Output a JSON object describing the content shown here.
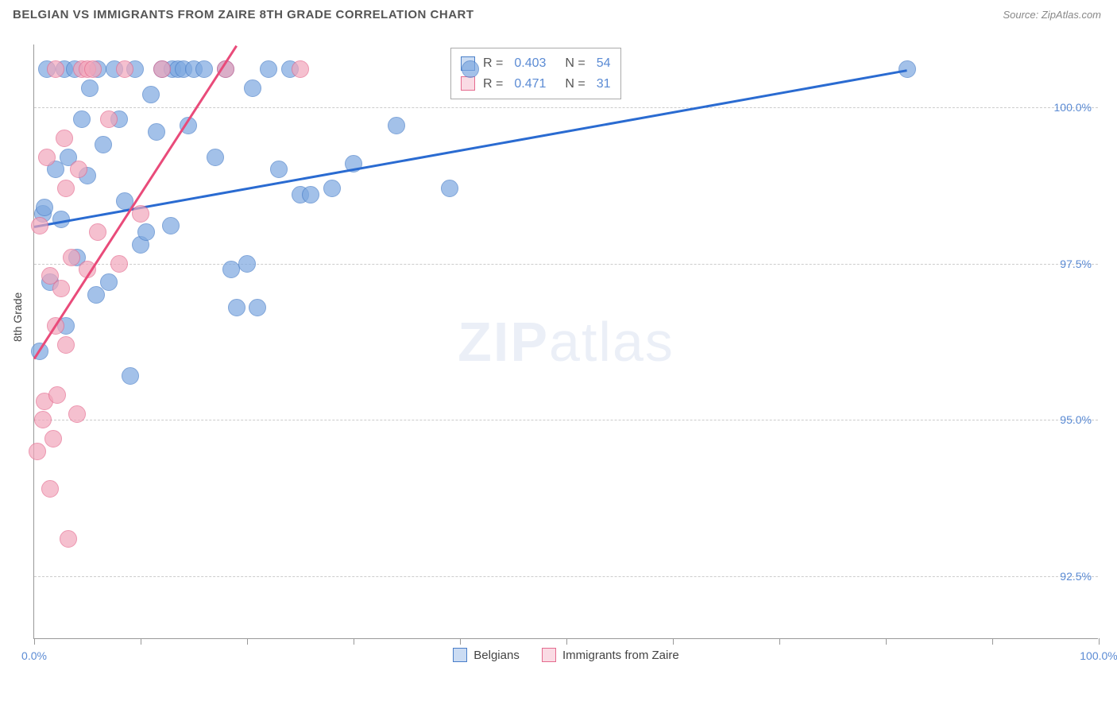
{
  "header": {
    "title": "BELGIAN VS IMMIGRANTS FROM ZAIRE 8TH GRADE CORRELATION CHART",
    "source": "Source: ZipAtlas.com"
  },
  "watermark": {
    "bold": "ZIP",
    "light": "atlas"
  },
  "chart": {
    "type": "scatter",
    "background_color": "#ffffff",
    "grid_color": "#cccccc",
    "axis_color": "#999999",
    "label_color": "#444444",
    "tick_label_color": "#5b8bd4",
    "label_fontsize": 14,
    "ylabel": "8th Grade",
    "xlim": [
      0,
      100
    ],
    "ylim": [
      91.5,
      101.0
    ],
    "ytick_labels": [
      "92.5%",
      "95.0%",
      "97.5%",
      "100.0%"
    ],
    "ytick_values": [
      92.5,
      95.0,
      97.5,
      100.0
    ],
    "xtick_values": [
      0,
      10,
      20,
      30,
      40,
      50,
      60,
      70,
      80,
      90,
      100
    ],
    "xtick_label_left": "0.0%",
    "xtick_label_right": "100.0%",
    "marker_radius": 11,
    "marker_fill_opacity": 0.35,
    "marker_stroke_width": 1.5,
    "series": [
      {
        "name": "Belgians",
        "color": "#7da8e0",
        "stroke": "#4a7fc9",
        "line_color": "#2a6bd1",
        "line_width": 3,
        "R": "0.403",
        "N": "54",
        "trend": {
          "x1": 0,
          "y1": 98.1,
          "x2": 82,
          "y2": 100.6
        },
        "points": [
          [
            0.5,
            96.1
          ],
          [
            0.8,
            98.3
          ],
          [
            1.0,
            98.4
          ],
          [
            1.2,
            100.6
          ],
          [
            1.5,
            97.2
          ],
          [
            2.0,
            99.0
          ],
          [
            2.5,
            98.2
          ],
          [
            2.8,
            100.6
          ],
          [
            3.0,
            96.5
          ],
          [
            3.2,
            99.2
          ],
          [
            3.8,
            100.6
          ],
          [
            4.0,
            97.6
          ],
          [
            4.5,
            99.8
          ],
          [
            5.0,
            98.9
          ],
          [
            5.2,
            100.3
          ],
          [
            5.8,
            97.0
          ],
          [
            6.0,
            100.6
          ],
          [
            6.5,
            99.4
          ],
          [
            7.0,
            97.2
          ],
          [
            7.5,
            100.6
          ],
          [
            8.0,
            99.8
          ],
          [
            8.5,
            98.5
          ],
          [
            9.0,
            95.7
          ],
          [
            9.5,
            100.6
          ],
          [
            10.0,
            97.8
          ],
          [
            10.5,
            98.0
          ],
          [
            11.0,
            100.2
          ],
          [
            11.5,
            99.6
          ],
          [
            12.0,
            100.6
          ],
          [
            12.8,
            98.1
          ],
          [
            13.0,
            100.6
          ],
          [
            13.5,
            100.6
          ],
          [
            14.0,
            100.6
          ],
          [
            14.5,
            99.7
          ],
          [
            15.0,
            100.6
          ],
          [
            16.0,
            100.6
          ],
          [
            17.0,
            99.2
          ],
          [
            18.0,
            100.6
          ],
          [
            18.5,
            97.4
          ],
          [
            19.0,
            96.8
          ],
          [
            20.0,
            97.5
          ],
          [
            20.5,
            100.3
          ],
          [
            21.0,
            96.8
          ],
          [
            22.0,
            100.6
          ],
          [
            23.0,
            99.0
          ],
          [
            24.0,
            100.6
          ],
          [
            25.0,
            98.6
          ],
          [
            26.0,
            98.6
          ],
          [
            28.0,
            98.7
          ],
          [
            30.0,
            99.1
          ],
          [
            34.0,
            99.7
          ],
          [
            39.0,
            98.7
          ],
          [
            41.0,
            100.6
          ],
          [
            82.0,
            100.6
          ]
        ]
      },
      {
        "name": "Immigrants from Zaire",
        "color": "#f2a6bb",
        "stroke": "#e56b8f",
        "line_color": "#e94b7a",
        "line_width": 3,
        "R": "0.471",
        "N": "31",
        "trend": {
          "x1": 0,
          "y1": 96.0,
          "x2": 19,
          "y2": 101.0
        },
        "points": [
          [
            0.3,
            94.5
          ],
          [
            0.5,
            98.1
          ],
          [
            0.8,
            95.0
          ],
          [
            1.0,
            95.3
          ],
          [
            1.2,
            99.2
          ],
          [
            1.5,
            93.9
          ],
          [
            1.5,
            97.3
          ],
          [
            1.8,
            94.7
          ],
          [
            2.0,
            96.5
          ],
          [
            2.0,
            100.6
          ],
          [
            2.2,
            95.4
          ],
          [
            2.5,
            97.1
          ],
          [
            2.8,
            99.5
          ],
          [
            3.0,
            98.7
          ],
          [
            3.0,
            96.2
          ],
          [
            3.2,
            93.1
          ],
          [
            3.5,
            97.6
          ],
          [
            4.0,
            95.1
          ],
          [
            4.2,
            99.0
          ],
          [
            4.5,
            100.6
          ],
          [
            5.0,
            97.4
          ],
          [
            5.0,
            100.6
          ],
          [
            5.5,
            100.6
          ],
          [
            6.0,
            98.0
          ],
          [
            7.0,
            99.8
          ],
          [
            8.0,
            97.5
          ],
          [
            8.5,
            100.6
          ],
          [
            10.0,
            98.3
          ],
          [
            12.0,
            100.6
          ],
          [
            18.0,
            100.6
          ],
          [
            25.0,
            100.6
          ]
        ]
      }
    ],
    "stat_legend": {
      "r_label": "R =",
      "n_label": "N ="
    },
    "bottom_legend": {
      "series1": "Belgians",
      "series2": "Immigrants from Zaire"
    }
  }
}
